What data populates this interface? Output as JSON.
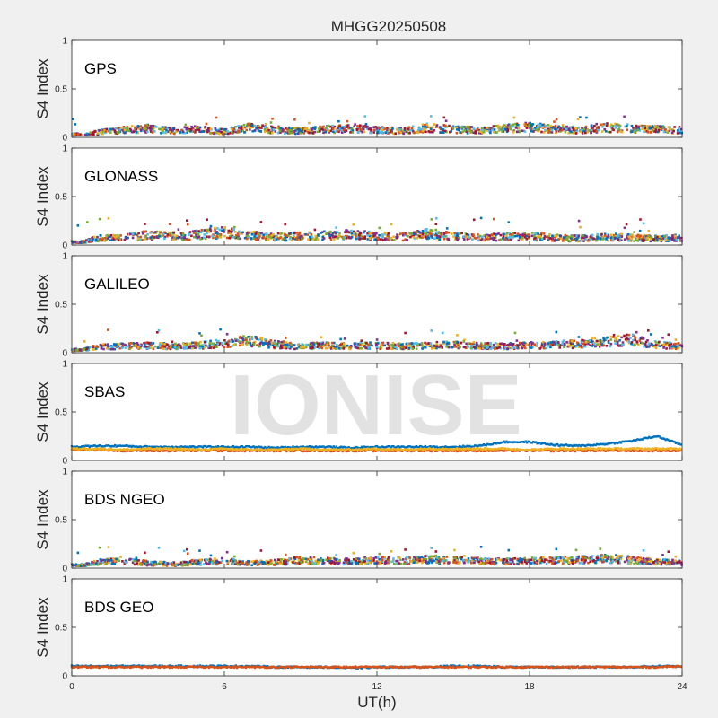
{
  "chart_data": {
    "type": "scatter",
    "title": "MHGG20250508",
    "xlabel": "UT(h)",
    "ylabel": "S4 Index",
    "xlim": [
      0,
      24
    ],
    "ylim": [
      0,
      1
    ],
    "xticks": [
      0,
      6,
      12,
      18,
      24
    ],
    "yticks": [
      0,
      0.5,
      1
    ],
    "ytick_labels": [
      "0",
      "0.5",
      "1"
    ],
    "watermark": "IONISE",
    "grid": false,
    "series_colors": [
      "#0072bd",
      "#d95319",
      "#edb120",
      "#7e2f8e",
      "#77ac30",
      "#4dbeee",
      "#a2142f"
    ],
    "panels": [
      {
        "label": "GPS",
        "typical_s4": [
          0,
          0.06,
          0.09,
          0.11,
          0.08,
          0.1,
          0.07,
          0.12,
          0.09,
          0.08,
          0.1,
          0.11,
          0.09,
          0.08,
          0.12,
          0.1,
          0.09,
          0.11,
          0.13,
          0.1,
          0.09,
          0.12,
          0.11,
          0.1,
          0.09
        ],
        "peak_s4": 0.22
      },
      {
        "label": "GLONASS",
        "typical_s4": [
          0,
          0.08,
          0.1,
          0.12,
          0.11,
          0.13,
          0.16,
          0.12,
          0.1,
          0.11,
          0.12,
          0.13,
          0.11,
          0.1,
          0.14,
          0.11,
          0.09,
          0.1,
          0.11,
          0.09,
          0.08,
          0.1,
          0.09,
          0.08,
          0.09
        ],
        "peak_s4": 0.28
      },
      {
        "label": "GALILEO",
        "typical_s4": [
          0,
          0.07,
          0.08,
          0.09,
          0.08,
          0.09,
          0.12,
          0.15,
          0.1,
          0.08,
          0.09,
          0.08,
          0.09,
          0.08,
          0.09,
          0.1,
          0.09,
          0.08,
          0.09,
          0.1,
          0.11,
          0.14,
          0.16,
          0.1,
          0.08
        ],
        "peak_s4": 0.24
      },
      {
        "label": "SBAS",
        "series": [
          {
            "values": [
              0.14,
              0.15,
              0.15,
              0.14,
              0.14,
              0.14,
              0.14,
              0.14,
              0.13,
              0.14,
              0.14,
              0.13,
              0.14,
              0.14,
              0.14,
              0.14,
              0.15,
              0.19,
              0.19,
              0.16,
              0.15,
              0.17,
              0.2,
              0.25,
              0.16
            ]
          },
          {
            "values": [
              0.11,
              0.11,
              0.1,
              0.1,
              0.1,
              0.1,
              0.1,
              0.1,
              0.1,
              0.1,
              0.1,
              0.1,
              0.1,
              0.1,
              0.1,
              0.1,
              0.1,
              0.1,
              0.1,
              0.1,
              0.1,
              0.1,
              0.1,
              0.1,
              0.1
            ]
          },
          {
            "values": [
              0.12,
              0.12,
              0.11,
              0.12,
              0.12,
              0.11,
              0.12,
              0.11,
              0.11,
              0.12,
              0.11,
              0.11,
              0.12,
              0.11,
              0.12,
              0.12,
              0.12,
              0.12,
              0.11,
              0.12,
              0.12,
              0.12,
              0.12,
              0.12,
              0.12
            ]
          }
        ]
      },
      {
        "label": "BDS NGEO",
        "typical_s4": [
          0,
          0.07,
          0.1,
          0.06,
          0.05,
          0.07,
          0.09,
          0.06,
          0.07,
          0.1,
          0.09,
          0.08,
          0.1,
          0.09,
          0.11,
          0.1,
          0.09,
          0.08,
          0.09,
          0.1,
          0.1,
          0.12,
          0.1,
          0.08,
          0.07
        ],
        "peak_s4": 0.22
      },
      {
        "label": "BDS GEO",
        "series": [
          {
            "values": [
              0.1,
              0.1,
              0.1,
              0.1,
              0.1,
              0.1,
              0.1,
              0.1,
              0.09,
              0.09,
              0.09,
              0.08,
              0.09,
              0.09,
              0.09,
              0.1,
              0.1,
              0.09,
              0.09,
              0.09,
              0.09,
              0.09,
              0.09,
              0.1,
              0.1
            ]
          },
          {
            "values": [
              0.09,
              0.09,
              0.09,
              0.09,
              0.09,
              0.09,
              0.09,
              0.09,
              0.09,
              0.09,
              0.09,
              0.09,
              0.09,
              0.09,
              0.09,
              0.09,
              0.09,
              0.09,
              0.09,
              0.09,
              0.09,
              0.09,
              0.09,
              0.09,
              0.1
            ]
          }
        ]
      }
    ]
  }
}
